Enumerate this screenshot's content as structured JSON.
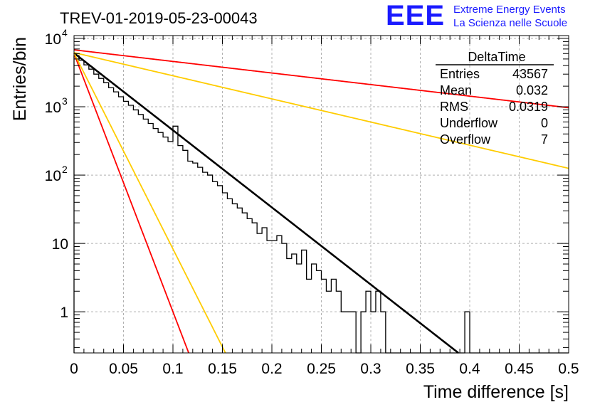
{
  "logo": {
    "mark": "EEE",
    "line1": "Extreme Energy Events",
    "line2": "La Scienza nelle Scuole"
  },
  "chart_data": {
    "type": "histogram",
    "title": "TREV-01-2019-05-23-00043",
    "xlabel": "Time difference [s]",
    "ylabel": "Entries/bin",
    "xlim": [
      0,
      0.5
    ],
    "ylim": [
      0.25,
      11000
    ],
    "yscale": "log",
    "grid": true,
    "x_ticks": [
      "0",
      "0.05",
      "0.1",
      "0.15",
      "0.2",
      "0.25",
      "0.3",
      "0.35",
      "0.4",
      "0.45",
      "0.5"
    ],
    "y_ticks": [
      {
        "value": 1,
        "label": "1"
      },
      {
        "value": 10,
        "label": "10"
      },
      {
        "value": 100,
        "label": "10",
        "exp": "2"
      },
      {
        "value": 1000,
        "label": "10",
        "exp": "3"
      },
      {
        "value": 10000,
        "label": "10",
        "exp": "4"
      }
    ],
    "bin_width": 0.005,
    "histogram_values": [
      5600,
      4800,
      4100,
      3550,
      3000,
      2600,
      2250,
      1900,
      1650,
      1400,
      1200,
      1050,
      900,
      770,
      660,
      570,
      480,
      420,
      360,
      310,
      520,
      270,
      230,
      160,
      150,
      130,
      110,
      100,
      80,
      70,
      55,
      45,
      38,
      33,
      28,
      23,
      20,
      14,
      17,
      11,
      11,
      13,
      10,
      6,
      7,
      5,
      8,
      3,
      5,
      4,
      3,
      2,
      3,
      2,
      1,
      1,
      1,
      0,
      1,
      2,
      1,
      2,
      1,
      0,
      0,
      0,
      0,
      0,
      0,
      0,
      0,
      0,
      0,
      0,
      0,
      0,
      0,
      0,
      0,
      1,
      0,
      0,
      0,
      0,
      0,
      0,
      0,
      0,
      0,
      0,
      0,
      0,
      0,
      0,
      0,
      0,
      0,
      0,
      0,
      0
    ],
    "fits": [
      {
        "color": "#000000",
        "a": 6100,
        "b": 26.0
      },
      {
        "color": "#ff0000",
        "a": 6800,
        "b": 3.9
      },
      {
        "color": "#ffcc00",
        "a": 6200,
        "b": 7.8
      },
      {
        "color": "#ff0000",
        "a": 6000,
        "b": 87.0
      },
      {
        "color": "#ffcc00",
        "a": 6100,
        "b": 66.0
      }
    ],
    "stats": {
      "title": "DeltaTime",
      "rows": [
        {
          "label": "Entries",
          "value": "43567"
        },
        {
          "label": "Mean",
          "value": "0.032"
        },
        {
          "label": "RMS",
          "value": "0.0319"
        },
        {
          "label": "Underflow",
          "value": "0"
        },
        {
          "label": "Overflow",
          "value": "7"
        }
      ]
    }
  }
}
